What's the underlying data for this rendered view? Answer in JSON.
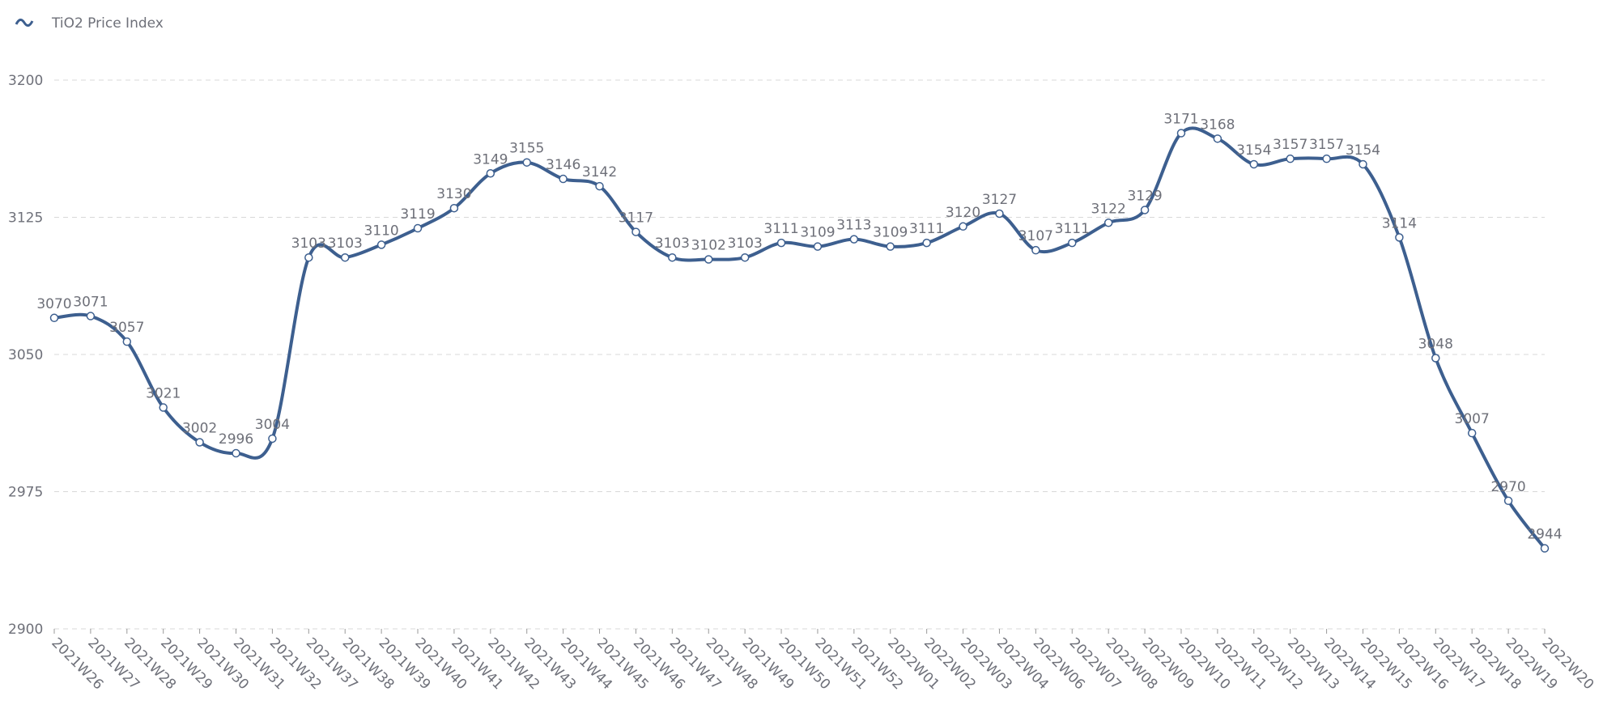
{
  "chart_data": {
    "type": "line",
    "categories": [
      "2021W26",
      "2021W27",
      "2021W28",
      "2021W29",
      "2021W30",
      "2021W31",
      "2021W32",
      "2021W37",
      "2021W38",
      "2021W39",
      "2021W40",
      "2021W41",
      "2021W42",
      "2021W43",
      "2021W44",
      "2021W45",
      "2021W46",
      "2021W47",
      "2021W48",
      "2021W49",
      "2021W50",
      "2021W51",
      "2021W52",
      "2022W01",
      "2022W02",
      "2022W03",
      "2022W04",
      "2022W06",
      "2022W07",
      "2022W08",
      "2022W09",
      "2022W10",
      "2022W11",
      "2022W12",
      "2022W13",
      "2022W14",
      "2022W15",
      "2022W16",
      "2022W17",
      "2022W18",
      "2022W19",
      "2022W20"
    ],
    "series": [
      {
        "name": "TiO2 Price Index",
        "color": "#3d5f8f",
        "values": [
          3070,
          3071,
          3057,
          3021,
          3002,
          2996,
          3004,
          3103,
          3103,
          3110,
          3119,
          3130,
          3149,
          3155,
          3146,
          3142,
          3117,
          3103,
          3102,
          3103,
          3111,
          3109,
          3113,
          3109,
          3111,
          3120,
          3127,
          3107,
          3111,
          3122,
          3129,
          3171,
          3168,
          3154,
          3157,
          3157,
          3154,
          3114,
          3048,
          3007,
          2970,
          2944
        ]
      }
    ],
    "ylim": [
      2900,
      3200
    ],
    "yticks": [
      2900,
      2975,
      3050,
      3125,
      3200
    ],
    "grid": true,
    "smooth": true
  }
}
